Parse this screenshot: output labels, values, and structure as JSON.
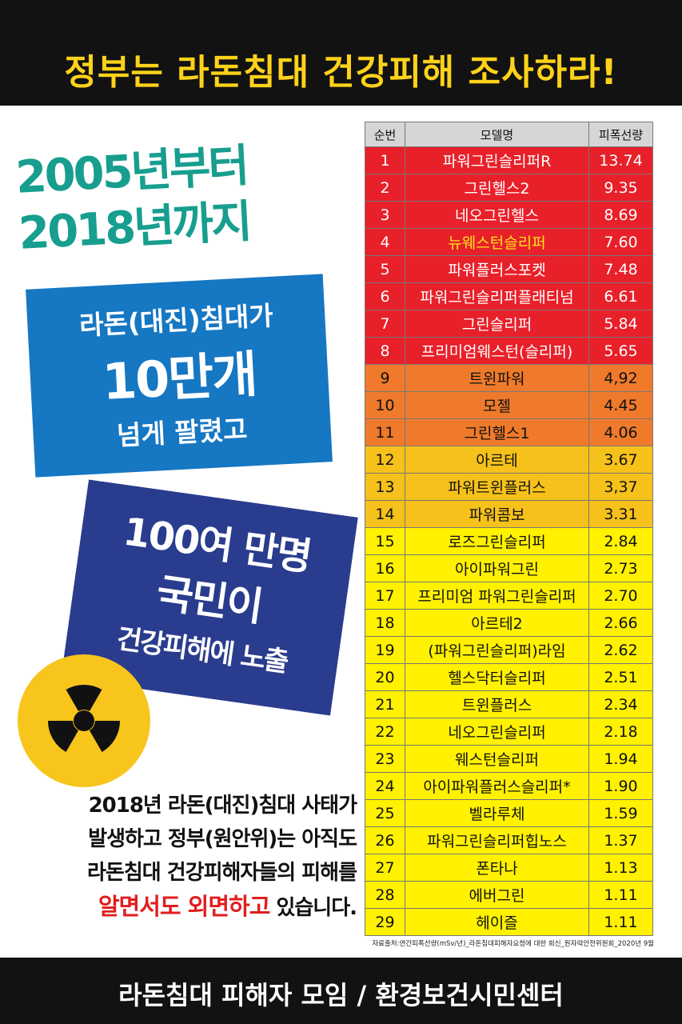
{
  "header": {
    "title": "정부는 라돈침대 건강피해 조사하라!"
  },
  "period": {
    "line1": "2005년부터",
    "line2": "2018년까지"
  },
  "sales": {
    "line1": "라돈(대진)침대가",
    "line2": "10만개",
    "line3": "넘게 팔렸고"
  },
  "exposure": {
    "line1": "100여 만명",
    "line2": "국민이",
    "line3": "건강피해에 노출"
  },
  "statement": {
    "line1": "2018년 라돈(대진)침대 사태가",
    "line2": "발생하고 정부(원안위)는 아직도",
    "line3": "라돈침대 건강피해자들의 피해를",
    "highlight": "알면서도 외면하고",
    "tail": " 있습니다."
  },
  "table": {
    "headers": [
      "순번",
      "모델명",
      "피폭선량"
    ],
    "rows": [
      {
        "rank": "1",
        "name": "파워그린슬리퍼R",
        "value": "13.74",
        "tier": "red"
      },
      {
        "rank": "2",
        "name": "그린헬스2",
        "value": "9.35",
        "tier": "red"
      },
      {
        "rank": "3",
        "name": "네오그린헬스",
        "value": "8.69",
        "tier": "red"
      },
      {
        "rank": "4",
        "name": "뉴웨스턴슬리퍼",
        "value": "7.60",
        "tier": "red",
        "highlight": true
      },
      {
        "rank": "5",
        "name": "파워플러스포켓",
        "value": "7.48",
        "tier": "red"
      },
      {
        "rank": "6",
        "name": "파워그린슬리퍼플래티넘",
        "value": "6.61",
        "tier": "red"
      },
      {
        "rank": "7",
        "name": "그린슬리퍼",
        "value": "5.84",
        "tier": "red"
      },
      {
        "rank": "8",
        "name": "프리미엄웨스턴(슬리퍼)",
        "value": "5.65",
        "tier": "red"
      },
      {
        "rank": "9",
        "name": "트윈파워",
        "value": "4,92",
        "tier": "orange"
      },
      {
        "rank": "10",
        "name": "모젤",
        "value": "4.45",
        "tier": "orange"
      },
      {
        "rank": "11",
        "name": "그린헬스1",
        "value": "4.06",
        "tier": "orange"
      },
      {
        "rank": "12",
        "name": "아르테",
        "value": "3.67",
        "tier": "amber"
      },
      {
        "rank": "13",
        "name": "파워트윈플러스",
        "value": "3,37",
        "tier": "amber"
      },
      {
        "rank": "14",
        "name": "파워콤보",
        "value": "3.31",
        "tier": "amber"
      },
      {
        "rank": "15",
        "name": "로즈그린슬리퍼",
        "value": "2.84",
        "tier": "yellow"
      },
      {
        "rank": "16",
        "name": "아이파워그린",
        "value": "2.73",
        "tier": "yellow"
      },
      {
        "rank": "17",
        "name": "프리미엄 파워그린슬리퍼",
        "value": "2.70",
        "tier": "yellow"
      },
      {
        "rank": "18",
        "name": "아르테2",
        "value": "2.66",
        "tier": "yellow"
      },
      {
        "rank": "19",
        "name": "(파워그린슬리퍼)라임",
        "value": "2.62",
        "tier": "yellow"
      },
      {
        "rank": "20",
        "name": "헬스닥터슬리퍼",
        "value": "2.51",
        "tier": "yellow"
      },
      {
        "rank": "21",
        "name": "트윈플러스",
        "value": "2.34",
        "tier": "yellow"
      },
      {
        "rank": "22",
        "name": "네오그린슬리퍼",
        "value": "2.18",
        "tier": "yellow"
      },
      {
        "rank": "23",
        "name": "웨스턴슬리퍼",
        "value": "1.94",
        "tier": "yellow"
      },
      {
        "rank": "24",
        "name": "아이파워플러스슬리퍼*",
        "value": "1.90",
        "tier": "yellow"
      },
      {
        "rank": "25",
        "name": "벨라루체",
        "value": "1.59",
        "tier": "yellow"
      },
      {
        "rank": "26",
        "name": "파워그린슬리퍼힙노스",
        "value": "1.37",
        "tier": "yellow"
      },
      {
        "rank": "27",
        "name": "폰타나",
        "value": "1.13",
        "tier": "yellow"
      },
      {
        "rank": "28",
        "name": "에버그린",
        "value": "1.11",
        "tier": "yellow"
      },
      {
        "rank": "29",
        "name": "헤이즐",
        "value": "1.11",
        "tier": "yellow"
      }
    ],
    "source": "자료출처:연간피폭선량(mSv/년)_라돈침대피해자요청에 대한 회신_원자력안전위원회_2020년 9월"
  },
  "footer": {
    "text": "라돈침대 피해자 모임  /  환경보건시민센터"
  },
  "colors": {
    "red": "#e8202a",
    "orange": "#ef7a2b",
    "amber": "#f6c11a",
    "yellow": "#fff100",
    "title": "#ffd21a",
    "teal": "#179e8e",
    "blue": "#1677c3",
    "navy": "#2a3c8e",
    "alert": "#e01e1e"
  },
  "icons": {
    "symbol": "radiation-icon"
  }
}
